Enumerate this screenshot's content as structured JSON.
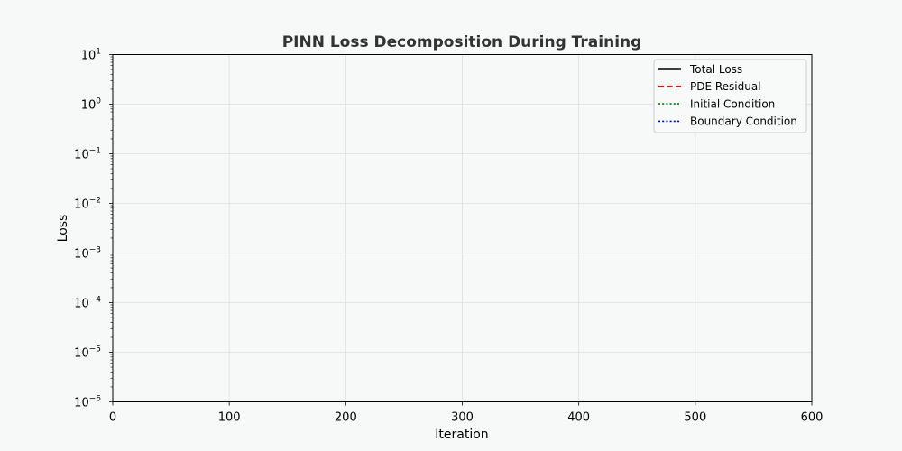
{
  "chart_data": {
    "type": "line",
    "title": "PINN Loss Decomposition During Training",
    "xlabel": "Iteration",
    "ylabel": "Loss",
    "xlim": [
      0,
      600
    ],
    "ylim": [
      1e-06,
      10
    ],
    "yscale": "log",
    "grid": true,
    "legend_position": "top-right",
    "x_ticks": [
      "0",
      "100",
      "200",
      "300",
      "400",
      "500",
      "600"
    ],
    "y_ticks": [
      {
        "base": "10",
        "exp": "1"
      },
      {
        "base": "10",
        "exp": "0"
      },
      {
        "base": "10",
        "exp": "−1"
      },
      {
        "base": "10",
        "exp": "−2"
      },
      {
        "base": "10",
        "exp": "−3"
      },
      {
        "base": "10",
        "exp": "−4"
      },
      {
        "base": "10",
        "exp": "−5"
      },
      {
        "base": "10",
        "exp": "−6"
      }
    ],
    "series": [
      {
        "name": "Total Loss",
        "color": "#000000",
        "dash": "solid",
        "x": [],
        "y": []
      },
      {
        "name": "PDE Residual",
        "color": "#ff0000",
        "dash": "dashed",
        "x": [],
        "y": []
      },
      {
        "name": "Initial Condition",
        "color": "#008000",
        "dash": "dotted",
        "x": [],
        "y": []
      },
      {
        "name": "Boundary Condition",
        "color": "#0000ff",
        "dash": "dotted",
        "x": [],
        "y": []
      }
    ]
  }
}
